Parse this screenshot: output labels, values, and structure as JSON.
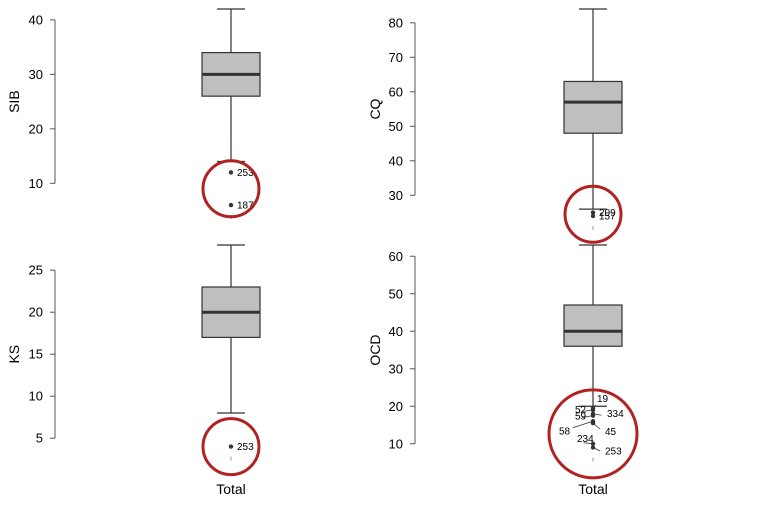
{
  "chart_data": [
    {
      "type": "box",
      "ylabel": "SIB",
      "xlabel": "Total",
      "ylim": [
        4,
        42
      ],
      "yticks": [
        10,
        20,
        30,
        40
      ],
      "stats": {
        "whisker_low": 14,
        "q1": 26,
        "median": 30,
        "q3": 34,
        "whisker_high": 42
      },
      "outliers": [
        {
          "value": 12,
          "label": "253"
        },
        {
          "value": 6,
          "label": "187"
        }
      ],
      "highlight_color": "#b22222"
    },
    {
      "type": "box",
      "ylabel": "CQ",
      "xlabel": "Total",
      "ylim": [
        24,
        84
      ],
      "yticks": [
        30,
        40,
        50,
        60,
        70,
        80
      ],
      "stats": {
        "whisker_low": 26,
        "q1": 48,
        "median": 57,
        "q3": 63,
        "whisker_high": 84
      },
      "outliers": [
        {
          "value": 25,
          "label": "209"
        },
        {
          "value": 24,
          "label": "157"
        }
      ],
      "highlight_color": "#b22222"
    },
    {
      "type": "box",
      "ylabel": "KS",
      "xlabel": "Total",
      "ylim": [
        3,
        28
      ],
      "yticks": [
        5,
        10,
        15,
        20,
        25
      ],
      "stats": {
        "whisker_low": 8,
        "q1": 17,
        "median": 20,
        "q3": 23,
        "whisker_high": 28
      },
      "outliers": [
        {
          "value": 4,
          "label": "253"
        }
      ],
      "highlight_color": "#b22222"
    },
    {
      "type": "box",
      "ylabel": "OCD",
      "xlabel": "Total",
      "ylim": [
        7,
        63
      ],
      "yticks": [
        10,
        20,
        30,
        40,
        50,
        60
      ],
      "stats": {
        "whisker_low": 20,
        "q1": 36,
        "median": 40,
        "q3": 47,
        "whisker_high": 63
      },
      "outliers": [
        {
          "value": 19.5,
          "label": "19"
        },
        {
          "value": 19,
          "label": "52"
        },
        {
          "value": 18,
          "label": "334"
        },
        {
          "value": 17.5,
          "label": "59"
        },
        {
          "value": 16,
          "label": "58"
        },
        {
          "value": 15.5,
          "label": "45"
        },
        {
          "value": 10,
          "label": "234"
        },
        {
          "value": 9,
          "label": "253"
        }
      ],
      "highlight_color": "#b22222"
    }
  ]
}
